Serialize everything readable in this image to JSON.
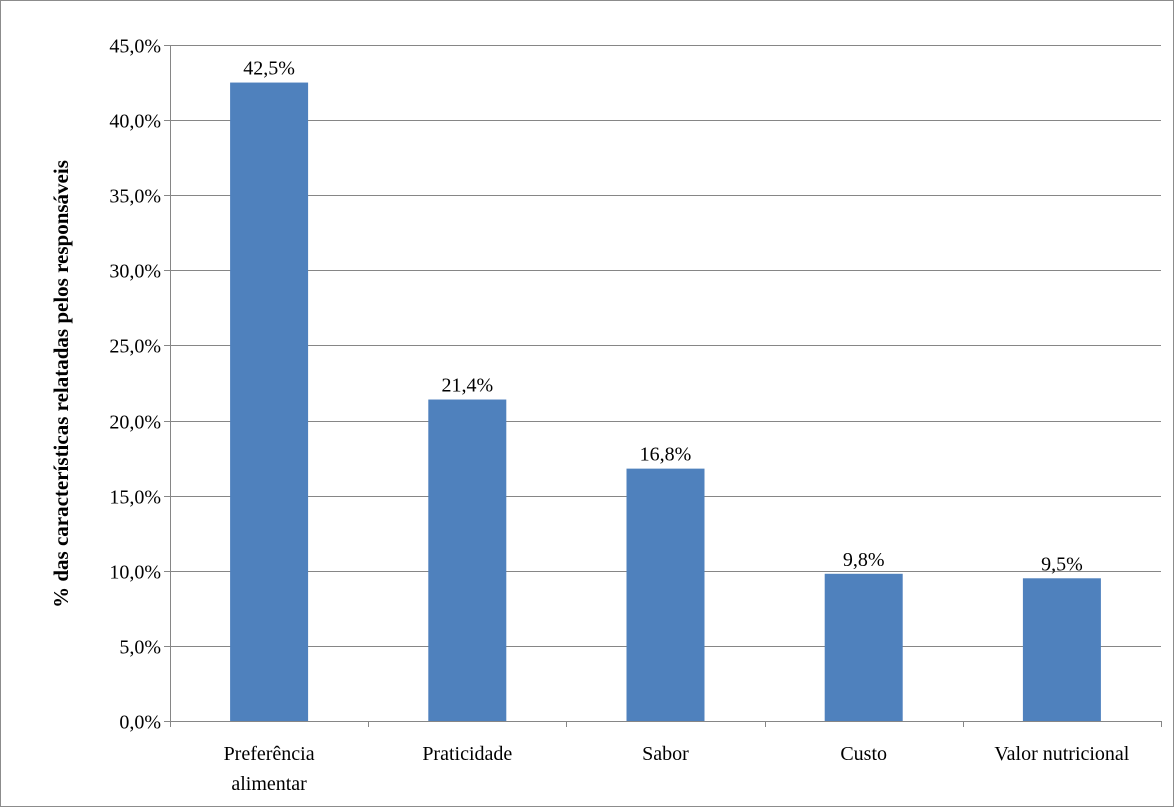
{
  "chart_data": {
    "type": "bar",
    "categories": [
      [
        "Preferência",
        "alimentar"
      ],
      [
        "Praticidade"
      ],
      [
        "Sabor"
      ],
      [
        "Custo"
      ],
      [
        "Valor nutricional"
      ]
    ],
    "values": [
      42.5,
      21.4,
      16.8,
      9.8,
      9.5
    ],
    "data_labels": [
      "42,5%",
      "21,4%",
      "16,8%",
      "9,8%",
      "9,5%"
    ],
    "ylabel": "% das características relatadas pelos responsáveis",
    "xlabel": "",
    "ylim": [
      0,
      45
    ],
    "yticks": [
      0,
      5,
      10,
      15,
      20,
      25,
      30,
      35,
      40,
      45
    ],
    "ytick_labels": [
      "0,0%",
      "5,0%",
      "10,0%",
      "15,0%",
      "20,0%",
      "25,0%",
      "30,0%",
      "35,0%",
      "40,0%",
      "45,0%"
    ],
    "grid": true,
    "legend": "none",
    "bar_color": "#4f81bd",
    "gridline_color": "#868686"
  }
}
